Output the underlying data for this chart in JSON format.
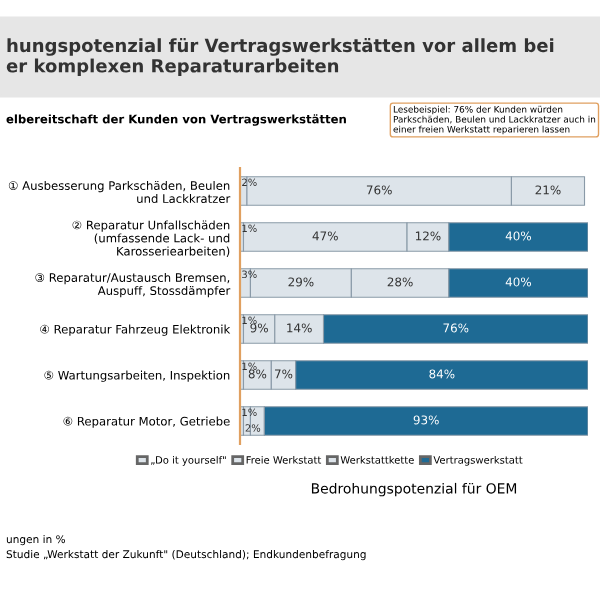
{
  "chart_data": {
    "type": "bar",
    "orientation": "horizontal",
    "stacked": true,
    "title": "hungspotenzial für Vertragswerkstätten vor allem bei\ner komplexen Reparaturarbeiten",
    "subtitle": "elbereitschaft der Kunden von Vertragswerkstätten",
    "categories": [
      "① Ausbesserung Parkschäden, Beulen und Lackkratzer",
      "② Reparatur Unfallschäden (umfassende Lack- und Karosseriearbeiten)",
      "③ Reparatur/Austausch Bremsen, Auspuff, Stossdämpfer",
      "④ Reparatur Fahrzeug Elektronik",
      "⑤ Wartungsarbeiten, Inspektion",
      "⑥ Reparatur Motor, Getriebe"
    ],
    "xlim": [
      0,
      100
    ],
    "tick_labels": "y",
    "legend": "bottom",
    "xlabel": "Bedrohungspotenzial für OEM",
    "series": [
      {
        "name": "„Do it yourself\"",
        "color": "#dde4ea",
        "values": [
          2,
          1,
          3,
          1,
          1,
          1
        ],
        "value_labels": [
          "2%",
          "1%",
          "3%",
          "1%",
          "1%",
          "1%"
        ]
      },
      {
        "name": "Freie Werkstatt",
        "color": "#dde4ea",
        "values": [
          76,
          47,
          29,
          9,
          8,
          2
        ],
        "value_labels": [
          "76%",
          "47%",
          "29%",
          "9%",
          "8%",
          "2%"
        ]
      },
      {
        "name": "Werkstattkette",
        "color": "#dde4ea",
        "values": [
          21,
          12,
          28,
          14,
          7,
          4
        ],
        "value_labels": [
          "21%",
          "12%",
          "28%",
          "14%",
          "7%",
          null
        ]
      },
      {
        "name": "Vertragswerkstatt",
        "color": "#1e6a94",
        "values": [
          null,
          40,
          40,
          76,
          84,
          93
        ],
        "value_labels": [
          null,
          "40%",
          "40%",
          "76%",
          "84%",
          "93%"
        ]
      }
    ],
    "annotations": [
      "Lesebeispiel: 76% der Kunden würden Parkschäden, Beulen und Lackkratzer auch in einer freien Werkstatt reparieren lassen",
      "ungen in %",
      "Studie „Werkstatt der Zukunft\" (Deutschland); Endkundenbefragung"
    ]
  }
}
